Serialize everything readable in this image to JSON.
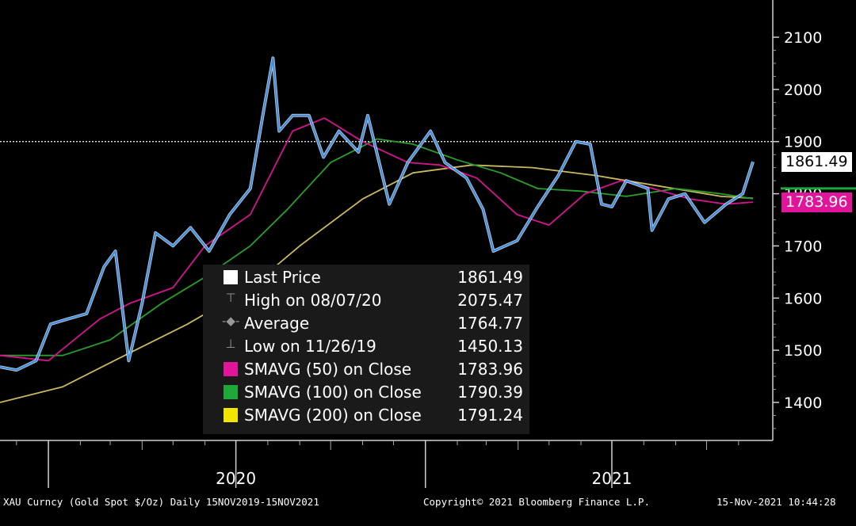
{
  "chart_data": {
    "type": "line",
    "title": "",
    "xlabel": "",
    "ylabel": "",
    "ylim": [
      1330,
      2120
    ],
    "y_ticks": [
      "2100",
      "2000",
      "1900",
      "1800",
      "1700",
      "1600",
      "1500",
      "1400"
    ],
    "x_tick_labels": [
      "2020",
      "2021"
    ],
    "x_range": [
      "2019-11-15",
      "2021-11-15"
    ],
    "grid": false,
    "reference_line": 1900,
    "series": [
      {
        "name": "Last Price",
        "color": "#3b8fe8",
        "points": [
          [
            "2019-11-15",
            1468
          ],
          [
            "2019-12-01",
            1462
          ],
          [
            "2019-12-20",
            1480
          ],
          [
            "2020-01-03",
            1550
          ],
          [
            "2020-01-20",
            1560
          ],
          [
            "2020-02-07",
            1570
          ],
          [
            "2020-02-24",
            1660
          ],
          [
            "2020-03-06",
            1690
          ],
          [
            "2020-03-19",
            1480
          ],
          [
            "2020-04-01",
            1590
          ],
          [
            "2020-04-14",
            1725
          ],
          [
            "2020-05-01",
            1700
          ],
          [
            "2020-05-18",
            1735
          ],
          [
            "2020-06-05",
            1690
          ],
          [
            "2020-06-25",
            1760
          ],
          [
            "2020-07-15",
            1810
          ],
          [
            "2020-07-28",
            1960
          ],
          [
            "2020-08-06",
            2060
          ],
          [
            "2020-08-12",
            1920
          ],
          [
            "2020-08-25",
            1950
          ],
          [
            "2020-09-10",
            1950
          ],
          [
            "2020-09-24",
            1870
          ],
          [
            "2020-10-09",
            1920
          ],
          [
            "2020-10-28",
            1880
          ],
          [
            "2020-11-06",
            1950
          ],
          [
            "2020-11-27",
            1780
          ],
          [
            "2020-12-15",
            1860
          ],
          [
            "2021-01-06",
            1920
          ],
          [
            "2021-01-20",
            1860
          ],
          [
            "2021-02-10",
            1830
          ],
          [
            "2021-02-26",
            1770
          ],
          [
            "2021-03-08",
            1690
          ],
          [
            "2021-03-31",
            1710
          ],
          [
            "2021-04-20",
            1775
          ],
          [
            "2021-05-10",
            1835
          ],
          [
            "2021-05-27",
            1900
          ],
          [
            "2021-06-10",
            1895
          ],
          [
            "2021-06-21",
            1780
          ],
          [
            "2021-07-01",
            1775
          ],
          [
            "2021-07-15",
            1825
          ],
          [
            "2021-08-05",
            1810
          ],
          [
            "2021-08-09",
            1730
          ],
          [
            "2021-08-25",
            1790
          ],
          [
            "2021-09-10",
            1800
          ],
          [
            "2021-09-29",
            1745
          ],
          [
            "2021-10-20",
            1780
          ],
          [
            "2021-11-05",
            1800
          ],
          [
            "2021-11-15",
            1861.49
          ]
        ]
      },
      {
        "name": "SMAVG (50)  on Close",
        "color": "#d4148f",
        "points": [
          [
            "2019-11-15",
            1490
          ],
          [
            "2020-01-01",
            1480
          ],
          [
            "2020-02-20",
            1560
          ],
          [
            "2020-03-20",
            1590
          ],
          [
            "2020-05-01",
            1620
          ],
          [
            "2020-06-01",
            1700
          ],
          [
            "2020-07-15",
            1760
          ],
          [
            "2020-08-25",
            1920
          ],
          [
            "2020-09-25",
            1945
          ],
          [
            "2020-11-01",
            1900
          ],
          [
            "2020-12-15",
            1860
          ],
          [
            "2021-01-15",
            1855
          ],
          [
            "2021-02-20",
            1830
          ],
          [
            "2021-03-31",
            1760
          ],
          [
            "2021-05-01",
            1740
          ],
          [
            "2021-06-05",
            1800
          ],
          [
            "2021-07-10",
            1825
          ],
          [
            "2021-08-10",
            1810
          ],
          [
            "2021-09-15",
            1790
          ],
          [
            "2021-10-20",
            1780
          ],
          [
            "2021-11-15",
            1783.96
          ]
        ]
      },
      {
        "name": "SMAVG (100)  on Close",
        "color": "#2a9e2a",
        "points": [
          [
            "2019-11-15",
            1490
          ],
          [
            "2020-01-15",
            1490
          ],
          [
            "2020-03-01",
            1520
          ],
          [
            "2020-04-20",
            1590
          ],
          [
            "2020-06-01",
            1640
          ],
          [
            "2020-07-15",
            1700
          ],
          [
            "2020-08-20",
            1770
          ],
          [
            "2020-10-01",
            1860
          ],
          [
            "2020-11-15",
            1905
          ],
          [
            "2020-12-20",
            1895
          ],
          [
            "2021-02-01",
            1865
          ],
          [
            "2021-03-15",
            1840
          ],
          [
            "2021-04-20",
            1810
          ],
          [
            "2021-06-01",
            1805
          ],
          [
            "2021-07-15",
            1795
          ],
          [
            "2021-09-01",
            1810
          ],
          [
            "2021-10-15",
            1800
          ],
          [
            "2021-11-15",
            1790.39
          ]
        ]
      },
      {
        "name": "SMAVG (200)  on Close",
        "color": "#c8b860",
        "points": [
          [
            "2019-11-15",
            1400
          ],
          [
            "2020-01-15",
            1430
          ],
          [
            "2020-03-15",
            1490
          ],
          [
            "2020-05-15",
            1550
          ],
          [
            "2020-07-15",
            1620
          ],
          [
            "2020-09-01",
            1700
          ],
          [
            "2020-11-01",
            1790
          ],
          [
            "2020-12-20",
            1840
          ],
          [
            "2021-02-15",
            1855
          ],
          [
            "2021-04-15",
            1850
          ],
          [
            "2021-06-15",
            1835
          ],
          [
            "2021-08-15",
            1815
          ],
          [
            "2021-10-15",
            1795
          ],
          [
            "2021-11-15",
            1791.24
          ]
        ]
      }
    ],
    "legend": [
      {
        "label": "Last Price",
        "value": "1861.49",
        "marker": "swatch",
        "color": "#ffffff"
      },
      {
        "label": "High on 08/07/20",
        "value": "2075.47",
        "marker": "high-icon",
        "color": "#999999"
      },
      {
        "label": "Average",
        "value": "1764.77",
        "marker": "average-icon",
        "color": "#999999"
      },
      {
        "label": "Low on 11/26/19",
        "value": "1450.13",
        "marker": "low-icon",
        "color": "#999999"
      },
      {
        "label": "SMAVG (50)  on Close",
        "value": "1783.96",
        "marker": "swatch",
        "color": "#e0159a"
      },
      {
        "label": "SMAVG (100)  on Close",
        "value": "1790.39",
        "marker": "swatch",
        "color": "#1fa83a"
      },
      {
        "label": "SMAVG (200)  on Close",
        "value": "1791.24",
        "marker": "swatch",
        "color": "#f2e600"
      }
    ],
    "axis_tags": [
      {
        "value": 1861.49,
        "label": "1861.49",
        "bg": "#ffffff",
        "fg": "#000000"
      },
      {
        "value": 1783.96,
        "label": "1783.96",
        "bg": "#e0159a",
        "fg": "#ffffff"
      }
    ]
  },
  "footer": {
    "left": "XAU Curncy (Gold Spot  $/Oz)  Daily 15NOV2019-15NOV2021",
    "center": "Copyright© 2021 Bloomberg Finance L.P.",
    "right": "15-Nov-2021 10:44:28"
  }
}
